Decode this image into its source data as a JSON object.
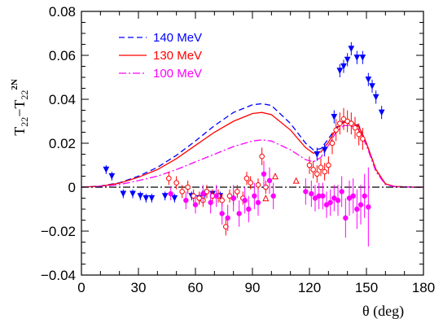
{
  "chart_data": {
    "type": "scatter",
    "title": "",
    "xlabel": "θ (deg)",
    "ylabel": "T22 − T22 2N",
    "ylabel_main": "T",
    "ylabel_sub1": "22",
    "ylabel_minus": "−T",
    "ylabel_sub2": "22",
    "ylabel_sup": "2N",
    "xlim": [
      0,
      180
    ],
    "ylim": [
      -0.04,
      0.08
    ],
    "xticks": [
      0,
      30,
      60,
      90,
      120,
      150,
      180
    ],
    "yticks": [
      -0.04,
      -0.02,
      0,
      0.02,
      0.04,
      0.06,
      0.08
    ],
    "ytick_labels": [
      "−0.04",
      "−0.02",
      "0",
      "0.02",
      "0.04",
      "0.06",
      "0.08"
    ],
    "grid": false,
    "legend_position": "top-left",
    "zero_line": true,
    "curves": [
      {
        "name": "140 MeV",
        "color": "#0000ff",
        "style": "dashed",
        "x": [
          0,
          10,
          20,
          30,
          40,
          50,
          60,
          70,
          80,
          90,
          95,
          100,
          110,
          118,
          122,
          126,
          130,
          134,
          138,
          142,
          146,
          150,
          155,
          160,
          165,
          170,
          175,
          180
        ],
        "y": [
          0,
          0.0005,
          0.002,
          0.005,
          0.009,
          0.0145,
          0.021,
          0.028,
          0.034,
          0.0375,
          0.038,
          0.0372,
          0.029,
          0.02,
          0.017,
          0.0175,
          0.022,
          0.027,
          0.03,
          0.03,
          0.028,
          0.02,
          0.008,
          0.0015,
          0.0003,
          0.0001,
          0,
          0
        ]
      },
      {
        "name": "130 MeV",
        "color": "#ff0000",
        "style": "solid",
        "x": [
          0,
          10,
          20,
          30,
          40,
          50,
          60,
          70,
          80,
          90,
          95,
          100,
          110,
          118,
          122,
          126,
          130,
          134,
          138,
          142,
          146,
          150,
          155,
          160,
          165,
          170,
          175,
          180
        ],
        "y": [
          0,
          0.0004,
          0.0018,
          0.0045,
          0.008,
          0.013,
          0.019,
          0.025,
          0.03,
          0.0335,
          0.034,
          0.033,
          0.026,
          0.018,
          0.0155,
          0.016,
          0.0205,
          0.0265,
          0.0295,
          0.0295,
          0.0275,
          0.02,
          0.008,
          0.0015,
          0.0003,
          0.0001,
          0,
          0
        ]
      },
      {
        "name": "100 MeV",
        "color": "#ff00ff",
        "style": "dash-dot",
        "x": [
          0,
          10,
          20,
          30,
          40,
          50,
          60,
          70,
          80,
          90,
          95,
          100,
          110,
          118,
          122,
          126,
          130,
          134,
          138,
          142,
          146,
          150,
          155,
          160,
          165,
          170,
          175,
          180
        ],
        "y": [
          0,
          0.0003,
          0.0012,
          0.003,
          0.005,
          0.008,
          0.0115,
          0.015,
          0.0185,
          0.021,
          0.0215,
          0.021,
          0.017,
          0.0125,
          0.0115,
          0.0135,
          0.019,
          0.025,
          0.028,
          0.028,
          0.026,
          0.019,
          0.007,
          0.0012,
          0.0002,
          0.0001,
          0,
          0
        ]
      },
      {
        "name": "",
        "color": "#000000",
        "style": "dash-dot",
        "x": [
          0,
          180
        ],
        "y": [
          0,
          0
        ]
      }
    ],
    "series": [
      {
        "name": "",
        "color": "#0000ff",
        "marker": "triangle-down-filled",
        "x": [
          13,
          16,
          22,
          27,
          31,
          34,
          37,
          44,
          49,
          58,
          62,
          65,
          69,
          73,
          124,
          128,
          133,
          136,
          138,
          140,
          142,
          145,
          148,
          151,
          153,
          155,
          158
        ],
        "y": [
          0.008,
          0.005,
          -0.003,
          -0.003,
          -0.004,
          -0.005,
          -0.005,
          -0.004,
          -0.005,
          -0.004,
          -0.005,
          -0.003,
          -0.003,
          -0.004,
          0.015,
          0.017,
          0.032,
          0.053,
          0.055,
          0.058,
          0.063,
          0.059,
          0.059,
          0.049,
          0.046,
          0.041,
          0.034
        ],
        "err": [
          0.002,
          0.002,
          0.002,
          0.002,
          0.002,
          0.002,
          0.002,
          0.002,
          0.002,
          0.002,
          0.002,
          0.002,
          0.002,
          0.002,
          0.003,
          0.003,
          0.003,
          0.003,
          0.003,
          0.003,
          0.003,
          0.003,
          0.003,
          0.003,
          0.003,
          0.003,
          0.003
        ]
      },
      {
        "name": "",
        "color": "#ff0000",
        "marker": "circle-open",
        "x": [
          46,
          50,
          53,
          56,
          59,
          62,
          64,
          66,
          69,
          72,
          74,
          76,
          78,
          80,
          82,
          85,
          87,
          89,
          93,
          95,
          97,
          120,
          122,
          124,
          126,
          128,
          130,
          132,
          134,
          136,
          138,
          140,
          142,
          144,
          146,
          148
        ],
        "y": [
          0.004,
          0.002,
          -0.002,
          0.0,
          -0.004,
          -0.005,
          -0.006,
          -0.002,
          -0.004,
          -0.004,
          -0.006,
          -0.018,
          -0.004,
          -0.005,
          -0.002,
          -0.005,
          0.004,
          0.002,
          0.001,
          0.014,
          0.0,
          0.01,
          0.008,
          0.006,
          0.009,
          0.007,
          0.01,
          0.02,
          0.026,
          0.029,
          0.031,
          0.03,
          0.029,
          0.027,
          0.024,
          0.022
        ],
        "err": [
          0.003,
          0.003,
          0.003,
          0.003,
          0.003,
          0.003,
          0.003,
          0.003,
          0.003,
          0.003,
          0.003,
          0.004,
          0.003,
          0.003,
          0.003,
          0.003,
          0.003,
          0.003,
          0.003,
          0.004,
          0.003,
          0.004,
          0.004,
          0.004,
          0.004,
          0.004,
          0.004,
          0.005,
          0.005,
          0.005,
          0.005,
          0.005,
          0.005,
          0.005,
          0.005,
          0.005
        ]
      },
      {
        "name": "",
        "color": "#ff0000",
        "marker": "triangle-up-open",
        "x": [
          97,
          102,
          113
        ],
        "y": [
          -0.005,
          0.005,
          0.003
        ],
        "err": [
          0,
          0,
          0
        ]
      },
      {
        "name": "",
        "color": "#ff00ff",
        "marker": "circle-filled",
        "x": [
          47,
          55,
          60,
          64,
          68,
          71,
          74,
          77,
          80,
          83,
          86,
          88,
          91,
          93,
          96,
          99,
          101,
          118,
          121,
          123,
          125,
          127,
          129,
          131,
          133,
          135,
          137,
          139,
          141,
          143,
          145,
          147,
          149,
          151
        ],
        "y": [
          -0.003,
          -0.006,
          -0.008,
          -0.003,
          -0.007,
          -0.004,
          -0.012,
          -0.014,
          -0.005,
          -0.012,
          -0.006,
          -0.01,
          -0.004,
          -0.007,
          0.006,
          0.003,
          -0.004,
          -0.002,
          -0.003,
          -0.005,
          -0.004,
          -0.004,
          -0.008,
          -0.007,
          -0.005,
          -0.006,
          -0.002,
          -0.014,
          -0.005,
          -0.004,
          -0.01,
          -0.008,
          -0.004,
          -0.009
        ],
        "err": [
          0.003,
          0.004,
          0.004,
          0.004,
          0.005,
          0.005,
          0.005,
          0.006,
          0.006,
          0.006,
          0.006,
          0.006,
          0.006,
          0.006,
          0.006,
          0.006,
          0.006,
          0.006,
          0.006,
          0.006,
          0.006,
          0.006,
          0.006,
          0.006,
          0.006,
          0.007,
          0.007,
          0.009,
          0.008,
          0.008,
          0.009,
          0.009,
          0.01,
          0.018
        ]
      }
    ]
  }
}
